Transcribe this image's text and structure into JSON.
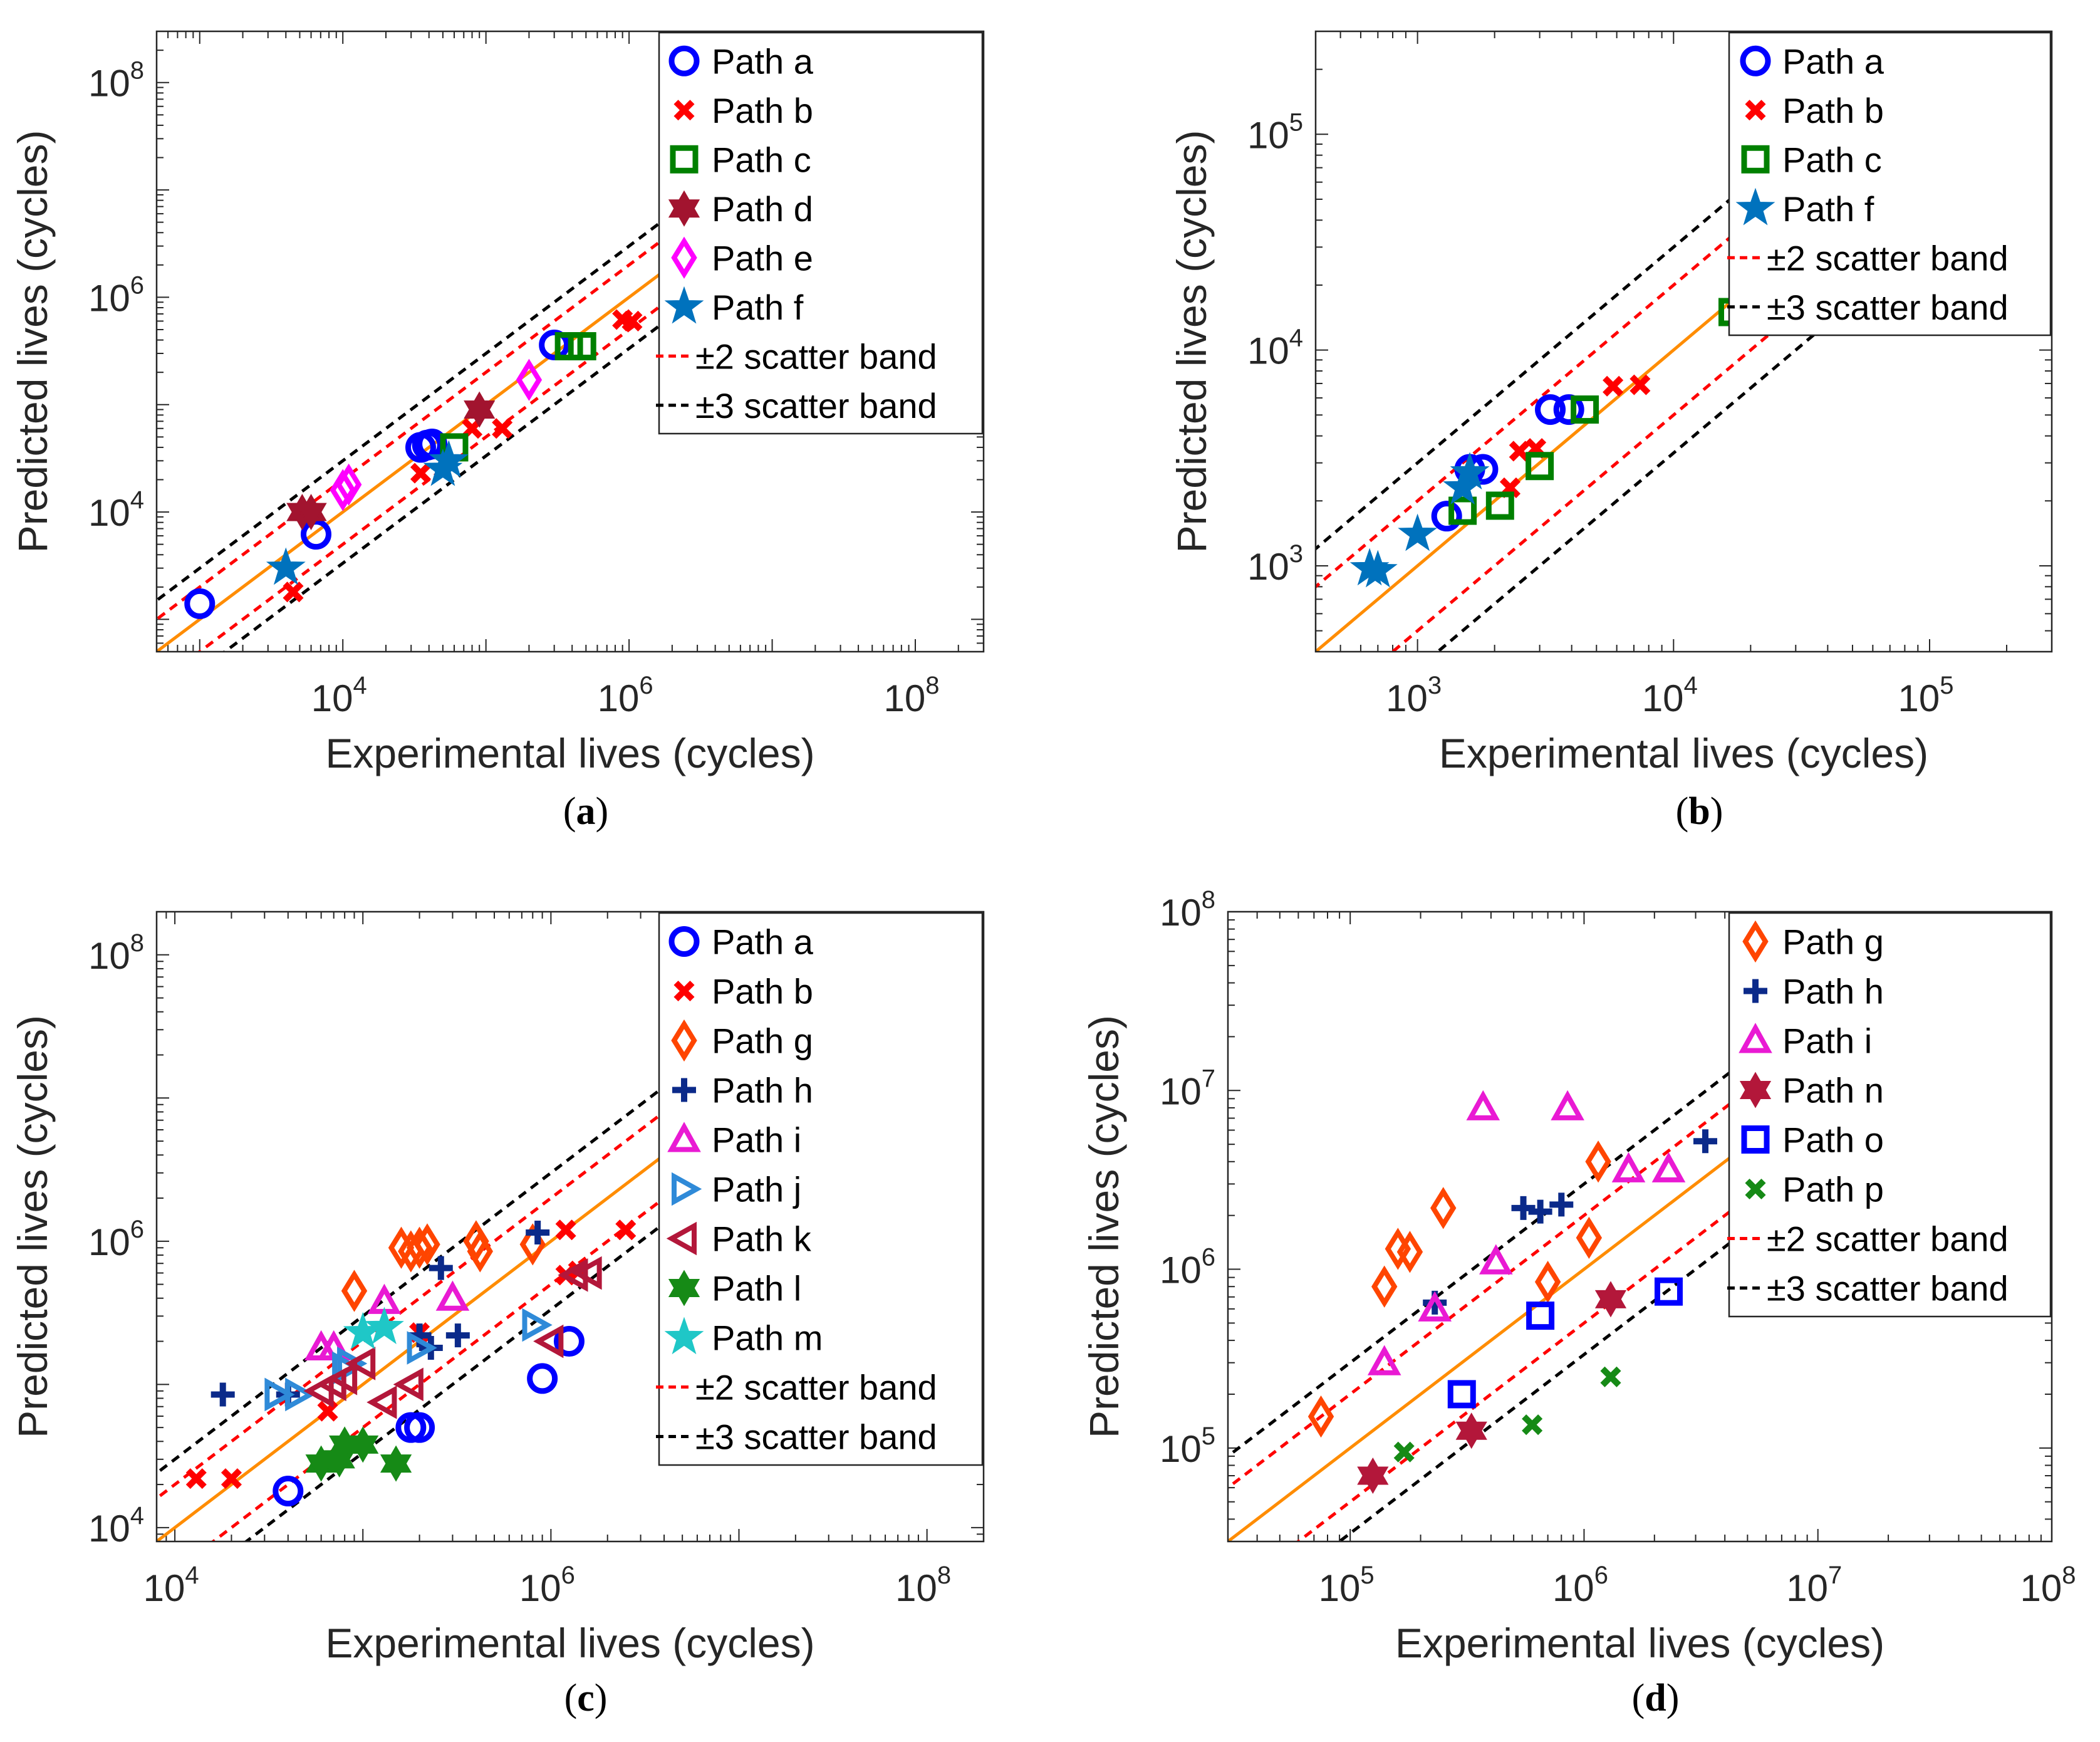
{
  "colors": {
    "path_a": "#0000ff",
    "path_b": "#ff0000",
    "path_c": "#008000",
    "path_d": "#a2142f",
    "path_e": "#ff00ff",
    "path_f": "#0072bd",
    "path_g": "#ff4500",
    "path_h": "#0b2a8a",
    "path_i": "#e91ad3",
    "path_j": "#2f8ad8",
    "path_k": "#b3173a",
    "path_l": "#168a16",
    "path_m": "#1fc7c7",
    "path_n": "#b3173a",
    "path_o": "#0000ff",
    "path_p": "#168a16",
    "fit_line": "#ff8c00",
    "scatter2": "#ff0000",
    "scatter3": "#000000"
  },
  "chart_data": [
    {
      "panel_label": "a",
      "type": "scatter",
      "xlabel": "Experimental lives (cycles)",
      "ylabel": "Predicted lives (cycles)",
      "scale": "log",
      "xlim": [
        500,
        300000000
      ],
      "ylim": [
        500,
        300000000
      ],
      "x_ticks": [
        10000,
        1000000,
        100000000
      ],
      "y_ticks": [
        10000,
        1000000,
        100000000
      ],
      "legend_position": "top-right",
      "legend": [
        "Path a",
        "Path b",
        "Path c",
        "Path d",
        "Path e",
        "Path f",
        "±2 scatter band",
        "±3 scatter band"
      ],
      "series": [
        {
          "name": "Path a",
          "marker": "circle",
          "color_key": "path_a",
          "points": [
            [
              1000,
              1400
            ],
            [
              6500,
              6200
            ],
            [
              35000,
              40000
            ],
            [
              39000,
              42000
            ],
            [
              42000,
              43000
            ],
            [
              300000,
              360000
            ]
          ]
        },
        {
          "name": "Path b",
          "marker": "x",
          "color_key": "path_b",
          "points": [
            [
              4500,
              1800
            ],
            [
              35000,
              23000
            ],
            [
              80000,
              60000
            ],
            [
              130000,
              60000
            ],
            [
              900000,
              620000
            ],
            [
              1050000,
              600000
            ]
          ]
        },
        {
          "name": "Path c",
          "marker": "square",
          "color_key": "path_c",
          "points": [
            [
              60000,
              40000
            ],
            [
              380000,
              350000
            ],
            [
              470000,
              350000
            ]
          ]
        },
        {
          "name": "Path d",
          "marker": "hexagram",
          "color_key": "path_d",
          "points": [
            [
              5200,
              10000
            ],
            [
              6000,
              10000
            ],
            [
              90000,
              90000
            ]
          ]
        },
        {
          "name": "Path e",
          "marker": "diamond",
          "color_key": "path_e",
          "points": [
            [
              10000,
              16000
            ],
            [
              11000,
              18000
            ],
            [
              200000,
              170000
            ]
          ]
        },
        {
          "name": "Path f",
          "marker": "star",
          "color_key": "path_f",
          "points": [
            [
              4000,
              3000
            ],
            [
              50000,
              25000
            ],
            [
              55000,
              30000
            ]
          ]
        }
      ]
    },
    {
      "panel_label": "b",
      "type": "scatter",
      "xlabel": "Experimental lives (cycles)",
      "ylabel": "Predicted lives (cycles)",
      "scale": "log",
      "xlim": [
        400,
        300000
      ],
      "ylim": [
        400,
        300000
      ],
      "x_ticks": [
        1000,
        10000,
        100000
      ],
      "y_ticks": [
        1000,
        10000,
        100000
      ],
      "legend_position": "top-right",
      "legend": [
        "Path a",
        "Path b",
        "Path c",
        "Path f",
        "±2 scatter band",
        "±3 scatter band"
      ],
      "series": [
        {
          "name": "Path a",
          "marker": "circle",
          "color_key": "path_a",
          "points": [
            [
              1300,
              1700
            ],
            [
              1600,
              2800
            ],
            [
              1800,
              2800
            ],
            [
              3300,
              5300
            ],
            [
              3900,
              5300
            ]
          ]
        },
        {
          "name": "Path b",
          "marker": "x",
          "color_key": "path_b",
          "points": [
            [
              2300,
              2300
            ],
            [
              2500,
              3400
            ],
            [
              2900,
              3500
            ],
            [
              5800,
              6800
            ],
            [
              7400,
              6900
            ]
          ]
        },
        {
          "name": "Path c",
          "marker": "square",
          "color_key": "path_c",
          "points": [
            [
              1500,
              1800
            ],
            [
              2100,
              1900
            ],
            [
              3000,
              2900
            ],
            [
              4500,
              5300
            ],
            [
              17000,
              15000
            ]
          ]
        },
        {
          "name": "Path f",
          "marker": "star",
          "color_key": "path_f",
          "points": [
            [
              650,
              970
            ],
            [
              700,
              950
            ],
            [
              1000,
              1400
            ],
            [
              1500,
              2300
            ],
            [
              1600,
              2700
            ]
          ]
        }
      ]
    },
    {
      "panel_label": "c",
      "type": "scatter",
      "xlabel": "Experimental lives (cycles)",
      "ylabel": "Predicted lives (cycles)",
      "scale": "log",
      "xlim": [
        8000,
        200000000
      ],
      "ylim": [
        8000,
        200000000
      ],
      "x_ticks": [
        10000,
        1000000,
        100000000
      ],
      "y_ticks": [
        10000,
        1000000,
        100000000
      ],
      "legend_position": "top-right",
      "legend": [
        "Path a",
        "Path b",
        "Path g",
        "Path h",
        "Path i",
        "Path j",
        "Path k",
        "Path l",
        "Path m",
        "±2 scatter band",
        "±3 scatter band"
      ],
      "series": [
        {
          "name": "Path a",
          "marker": "circle",
          "color_key": "path_a",
          "points": [
            [
              40000,
              18000
            ],
            [
              180000,
              50000
            ],
            [
              200000,
              50000
            ],
            [
              900000,
              110000
            ],
            [
              1250000,
              200000
            ]
          ]
        },
        {
          "name": "Path b",
          "marker": "x",
          "color_key": "path_b",
          "points": [
            [
              13000,
              22000
            ],
            [
              20000,
              22000
            ],
            [
              65000,
              65000
            ],
            [
              200000,
              230000
            ],
            [
              1200000,
              580000
            ],
            [
              1400000,
              620000
            ],
            [
              1200000,
              1200000
            ],
            [
              2500000,
              1200000
            ]
          ]
        },
        {
          "name": "Path g",
          "marker": "diamond",
          "color_key": "path_g",
          "points": [
            [
              90000,
              450000
            ],
            [
              160000,
              900000
            ],
            [
              180000,
              850000
            ],
            [
              200000,
              900000
            ],
            [
              220000,
              950000
            ],
            [
              400000,
              1000000
            ],
            [
              420000,
              850000
            ],
            [
              800000,
              950000
            ]
          ]
        },
        {
          "name": "Path h",
          "marker": "plus",
          "color_key": "path_h",
          "points": [
            [
              18000,
              85000
            ],
            [
              40000,
              85000
            ],
            [
              200000,
              220000
            ],
            [
              230000,
              180000
            ],
            [
              260000,
              650000
            ],
            [
              320000,
              220000
            ],
            [
              850000,
              1150000
            ]
          ]
        },
        {
          "name": "Path i",
          "marker": "triangle-up",
          "color_key": "path_i",
          "points": [
            [
              60000,
              180000
            ],
            [
              70000,
              180000
            ],
            [
              130000,
              380000
            ],
            [
              300000,
              400000
            ]
          ]
        },
        {
          "name": "Path j",
          "marker": "triangle-right",
          "color_key": "path_j",
          "points": [
            [
              35000,
              85000
            ],
            [
              45000,
              85000
            ],
            [
              80000,
              130000
            ],
            [
              85000,
              140000
            ],
            [
              200000,
              180000
            ],
            [
              820000,
              260000
            ]
          ]
        },
        {
          "name": "Path k",
          "marker": "triangle-left",
          "color_key": "path_k",
          "points": [
            [
              60000,
              90000
            ],
            [
              70000,
              100000
            ],
            [
              80000,
              110000
            ],
            [
              100000,
              140000
            ],
            [
              130000,
              75000
            ],
            [
              180000,
              100000
            ],
            [
              1000000,
              200000
            ],
            [
              1350000,
              580000
            ],
            [
              1600000,
              600000
            ]
          ]
        },
        {
          "name": "Path l",
          "marker": "hexagram",
          "color_key": "path_l",
          "points": [
            [
              60000,
              28000
            ],
            [
              75000,
              30000
            ],
            [
              80000,
              38000
            ],
            [
              100000,
              38000
            ],
            [
              150000,
              28000
            ]
          ]
        },
        {
          "name": "Path m",
          "marker": "star",
          "color_key": "path_m",
          "points": [
            [
              100000,
              230000
            ],
            [
              130000,
              250000
            ]
          ]
        }
      ]
    },
    {
      "panel_label": "d",
      "type": "scatter",
      "xlabel": "Experimental lives (cycles)",
      "ylabel": "Predicted lives (cycles)",
      "scale": "log",
      "xlim": [
        30000,
        100000000
      ],
      "ylim": [
        30000,
        100000000
      ],
      "x_ticks": [
        100000,
        1000000,
        10000000,
        100000000
      ],
      "y_ticks": [
        100000,
        1000000,
        10000000,
        100000000
      ],
      "legend_position": "top-right",
      "legend": [
        "Path g",
        "Path h",
        "Path i",
        "Path n",
        "Path o",
        "Path p",
        "±2 scatter band",
        "±3 scatter band"
      ],
      "series": [
        {
          "name": "Path g",
          "marker": "diamond",
          "color_key": "path_g",
          "points": [
            [
              75000,
              150000
            ],
            [
              140000,
              800000
            ],
            [
              160000,
              1300000
            ],
            [
              180000,
              1250000
            ],
            [
              250000,
              2200000
            ],
            [
              700000,
              850000
            ],
            [
              1050000,
              1500000
            ],
            [
              1150000,
              4000000
            ]
          ]
        },
        {
          "name": "Path h",
          "marker": "plus",
          "color_key": "path_h",
          "points": [
            [
              230000,
              650000
            ],
            [
              550000,
              2200000
            ],
            [
              650000,
              2100000
            ],
            [
              800000,
              2300000
            ],
            [
              3300000,
              5200000
            ]
          ]
        },
        {
          "name": "Path i",
          "marker": "triangle-up",
          "color_key": "path_i",
          "points": [
            [
              140000,
              300000
            ],
            [
              230000,
              600000
            ],
            [
              370000,
              8000000
            ],
            [
              420000,
              1100000
            ],
            [
              850000,
              8000000
            ],
            [
              1550000,
              3600000
            ],
            [
              2300000,
              3600000
            ]
          ]
        },
        {
          "name": "Path n",
          "marker": "hexagram",
          "color_key": "path_n",
          "points": [
            [
              125000,
              70000
            ],
            [
              330000,
              125000
            ],
            [
              1300000,
              680000
            ]
          ]
        },
        {
          "name": "Path o",
          "marker": "square",
          "color_key": "path_o",
          "points": [
            [
              300000,
              200000
            ],
            [
              650000,
              550000
            ],
            [
              2300000,
              750000
            ]
          ]
        },
        {
          "name": "Path p",
          "marker": "x",
          "color_key": "path_p",
          "points": [
            [
              170000,
              95000
            ],
            [
              600000,
              135000
            ],
            [
              1300000,
              250000
            ]
          ]
        }
      ]
    }
  ]
}
